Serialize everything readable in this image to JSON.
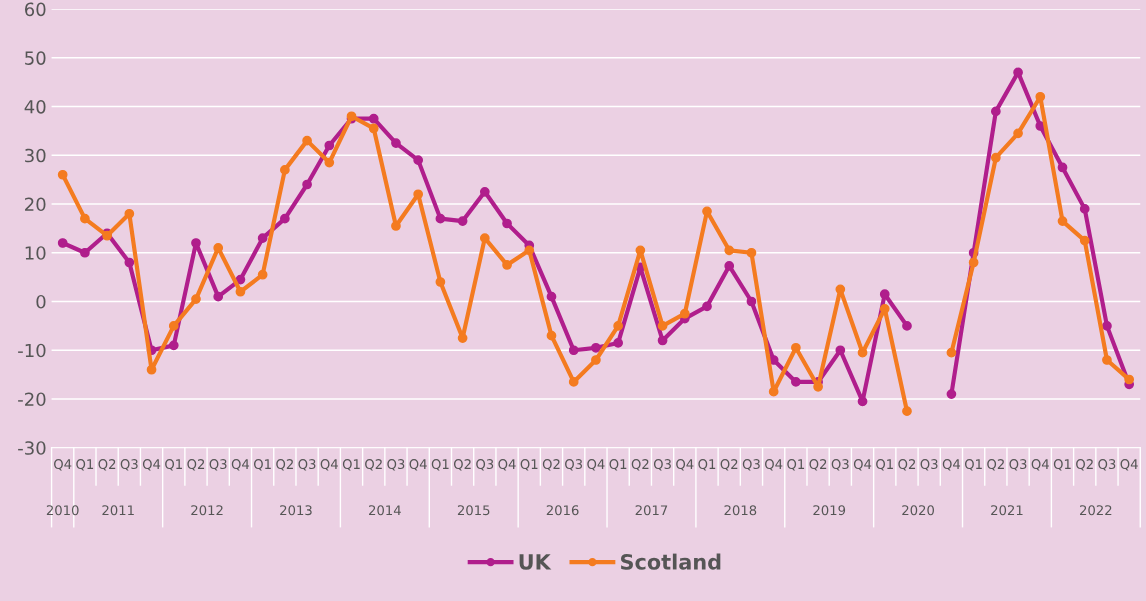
{
  "chart_data": {
    "type": "line",
    "categories": [
      "Q4",
      "Q1",
      "Q2",
      "Q3",
      "Q4",
      "Q1",
      "Q2",
      "Q3",
      "Q4",
      "Q1",
      "Q2",
      "Q3",
      "Q4",
      "Q1",
      "Q2",
      "Q3",
      "Q4",
      "Q1",
      "Q2",
      "Q3",
      "Q4",
      "Q1",
      "Q2",
      "Q3",
      "Q4",
      "Q1",
      "Q2",
      "Q3",
      "Q4",
      "Q1",
      "Q2",
      "Q3",
      "Q4",
      "Q1",
      "Q2",
      "Q3",
      "Q4",
      "Q1",
      "Q2",
      "Q3",
      "Q4",
      "Q1",
      "Q2",
      "Q3",
      "Q4",
      "Q1",
      "Q2",
      "Q3",
      "Q4"
    ],
    "annotations": [
      "2010",
      "2011",
      "2012",
      "2013",
      "2014",
      "2015",
      "2016",
      "2017",
      "2018",
      "2019",
      "2020",
      "2021",
      "2022"
    ],
    "series": [
      {
        "name": "UK",
        "color": "#b01e8c",
        "values": [
          12,
          10,
          14,
          8,
          -10,
          -9,
          12,
          1,
          4.5,
          13,
          17,
          24,
          32,
          37.5,
          37.5,
          32.5,
          29,
          17,
          16.5,
          22.5,
          16,
          11.5,
          1,
          -10,
          -9.5,
          -8.5,
          7,
          -8,
          -3.5,
          -1,
          7.3,
          0,
          -12,
          -16.5,
          -16.5,
          -10,
          -20.5,
          1.5,
          -5,
          null,
          -19,
          10,
          39,
          47,
          36,
          27.5,
          19,
          -5,
          -17
        ]
      },
      {
        "name": "Scotland",
        "color": "#f47b20",
        "values": [
          26,
          17,
          13.5,
          18,
          -14,
          -5,
          0.5,
          11,
          2,
          5.5,
          27,
          33,
          28.5,
          38,
          35.5,
          15.5,
          22,
          4,
          -7.5,
          13,
          7.5,
          10.5,
          -7,
          -16.5,
          -12,
          -5,
          10.5,
          -5,
          -2.5,
          18.5,
          10.5,
          10,
          -18.5,
          -9.5,
          -17.5,
          2.5,
          -10.5,
          -1.5,
          -22.5,
          null,
          -10.5,
          8,
          29.5,
          34.5,
          42,
          16.5,
          12.5,
          -12,
          -16
        ]
      }
    ],
    "ylim": [
      -30,
      60
    ],
    "yticks": [
      -30,
      -20,
      -10,
      0,
      10,
      20,
      30,
      40,
      50,
      60
    ],
    "grid": "y",
    "legend": "bottom",
    "marker": "circle",
    "line_style": "solid"
  }
}
